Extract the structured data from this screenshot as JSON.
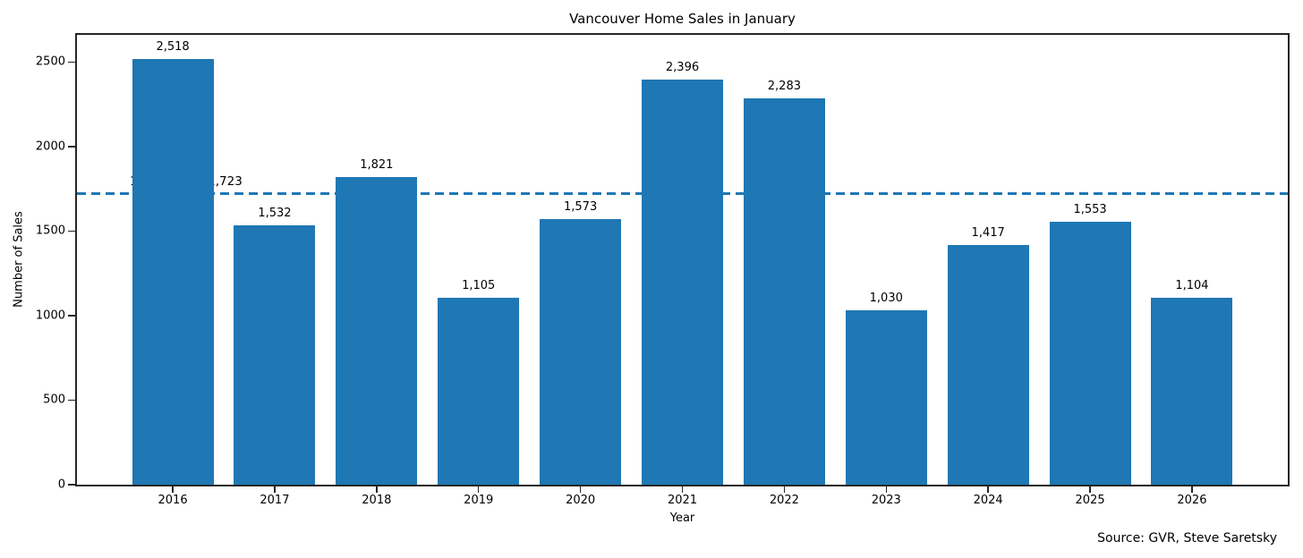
{
  "chart_data": {
    "type": "bar",
    "title": "Vancouver Home Sales in January",
    "categories": [
      "2016",
      "2017",
      "2018",
      "2019",
      "2020",
      "2021",
      "2022",
      "2023",
      "2024",
      "2025",
      "2026"
    ],
    "values": [
      2518,
      1532,
      1821,
      1105,
      1573,
      2396,
      2283,
      1030,
      1417,
      1553,
      1104
    ],
    "value_labels": [
      "2,518",
      "1,532",
      "1,821",
      "1,105",
      "1,573",
      "2,396",
      "2,283",
      "1,030",
      "1,417",
      "1,553",
      "1,104"
    ],
    "xlabel": "Year",
    "ylabel": "Number of Sales",
    "ylim": [
      0,
      2660
    ],
    "yticks": [
      0,
      500,
      1000,
      1500,
      2000,
      2500
    ],
    "grid": false,
    "legend": "none",
    "avg_line": {
      "value": 1723,
      "label": "10-Year Avg: 1,723",
      "style": "dashed"
    },
    "source": "Source: GVR, Steve Saretsky",
    "colors": {
      "bar": "#1f77b4",
      "avg_line": "#1f77b4",
      "text": "#000000",
      "spine": "#262626"
    }
  }
}
